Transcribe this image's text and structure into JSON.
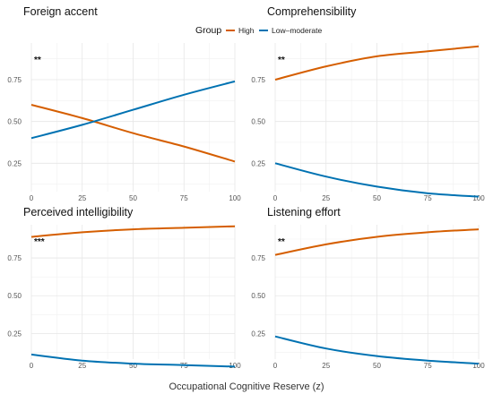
{
  "figure": {
    "xlabel": "Occupational Cognitive Reserve (z)"
  },
  "legend": {
    "title": "Group",
    "items": [
      {
        "label": "High",
        "color": "#D55E00"
      },
      {
        "label": "Low–moderate",
        "color": "#0072B2"
      }
    ]
  },
  "chart_data": [
    {
      "type": "line",
      "title": "Foreign accent",
      "annotation": "**",
      "x_ticks": [
        0,
        25,
        50,
        75,
        100
      ],
      "y_ticks": [
        0.25,
        0.5,
        0.75
      ],
      "y_tick_labels": [
        "0.25",
        "0.50",
        "0.75"
      ],
      "xlim": [
        0,
        100
      ],
      "ylim": [
        0.08,
        0.97
      ],
      "grid": true,
      "series": [
        {
          "name": "High",
          "color": "#D55E00",
          "x": [
            0,
            25,
            50,
            75,
            100
          ],
          "y": [
            0.6,
            0.52,
            0.43,
            0.35,
            0.26
          ]
        },
        {
          "name": "Low–moderate",
          "color": "#0072B2",
          "x": [
            0,
            25,
            50,
            75,
            100
          ],
          "y": [
            0.4,
            0.48,
            0.57,
            0.66,
            0.74
          ]
        }
      ]
    },
    {
      "type": "line",
      "title": "Comprehensibility",
      "annotation": "**",
      "x_ticks": [
        0,
        25,
        50,
        75,
        100
      ],
      "y_ticks": [
        0.25,
        0.5,
        0.75
      ],
      "y_tick_labels": [
        "0.25",
        "0.50",
        "0.75"
      ],
      "xlim": [
        0,
        100
      ],
      "ylim": [
        0.08,
        0.97
      ],
      "grid": true,
      "series": [
        {
          "name": "High",
          "color": "#D55E00",
          "x": [
            0,
            25,
            50,
            75,
            100
          ],
          "y": [
            0.75,
            0.83,
            0.89,
            0.92,
            0.95
          ]
        },
        {
          "name": "Low–moderate",
          "color": "#0072B2",
          "x": [
            0,
            25,
            50,
            75,
            100
          ],
          "y": [
            0.25,
            0.17,
            0.11,
            0.07,
            0.05
          ]
        }
      ]
    },
    {
      "type": "line",
      "title": "Perceived intelligibility",
      "annotation": "***",
      "x_ticks": [
        0,
        25,
        50,
        75,
        100
      ],
      "y_ticks": [
        0.25,
        0.5,
        0.75
      ],
      "y_tick_labels": [
        "0.25",
        "0.50",
        "0.75"
      ],
      "xlim": [
        0,
        100
      ],
      "ylim": [
        0.08,
        0.97
      ],
      "grid": true,
      "series": [
        {
          "name": "High",
          "color": "#D55E00",
          "x": [
            0,
            25,
            50,
            75,
            100
          ],
          "y": [
            0.89,
            0.92,
            0.94,
            0.95,
            0.96
          ]
        },
        {
          "name": "Low–moderate",
          "color": "#0072B2",
          "x": [
            0,
            25,
            50,
            75,
            100
          ],
          "y": [
            0.11,
            0.07,
            0.05,
            0.04,
            0.03
          ]
        }
      ]
    },
    {
      "type": "line",
      "title": "Listening effort",
      "annotation": "**",
      "x_ticks": [
        0,
        25,
        50,
        75,
        100
      ],
      "y_ticks": [
        0.25,
        0.5,
        0.75
      ],
      "y_tick_labels": [
        "0.25",
        "0.50",
        "0.75"
      ],
      "xlim": [
        0,
        100
      ],
      "ylim": [
        0.08,
        0.97
      ],
      "grid": true,
      "series": [
        {
          "name": "High",
          "color": "#D55E00",
          "x": [
            0,
            25,
            50,
            75,
            100
          ],
          "y": [
            0.77,
            0.84,
            0.89,
            0.92,
            0.94
          ]
        },
        {
          "name": "Low–moderate",
          "color": "#0072B2",
          "x": [
            0,
            25,
            50,
            75,
            100
          ],
          "y": [
            0.23,
            0.15,
            0.1,
            0.07,
            0.05
          ]
        }
      ]
    }
  ]
}
